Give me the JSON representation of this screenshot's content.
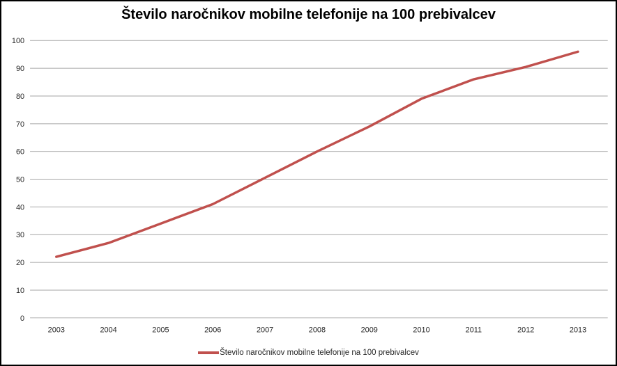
{
  "chart": {
    "title": "Število naročnikov mobilne telefonije na 100 prebivalcev"
  },
  "chart_data": {
    "type": "line",
    "title": "Število naročnikov mobilne telefonije na 100 prebivalcev",
    "categories": [
      "2003",
      "2004",
      "2005",
      "2006",
      "2007",
      "2008",
      "2009",
      "2010",
      "2011",
      "2012",
      "2013"
    ],
    "series": [
      {
        "name": "Število naročnikov mobilne telefonije na 100 prebivalcev",
        "color": "#C0504D",
        "values": [
          22,
          27,
          34,
          41,
          50.5,
          60,
          69,
          79,
          86,
          90.5,
          96
        ]
      }
    ],
    "xlabel": "",
    "ylabel": "",
    "ylim": [
      0,
      100
    ],
    "yticks": [
      0,
      10,
      20,
      30,
      40,
      50,
      60,
      70,
      80,
      90,
      100
    ],
    "grid": true,
    "gridline_color": "#a6a6a6",
    "axis_text_color": "#262626",
    "legend_position": "bottom"
  }
}
